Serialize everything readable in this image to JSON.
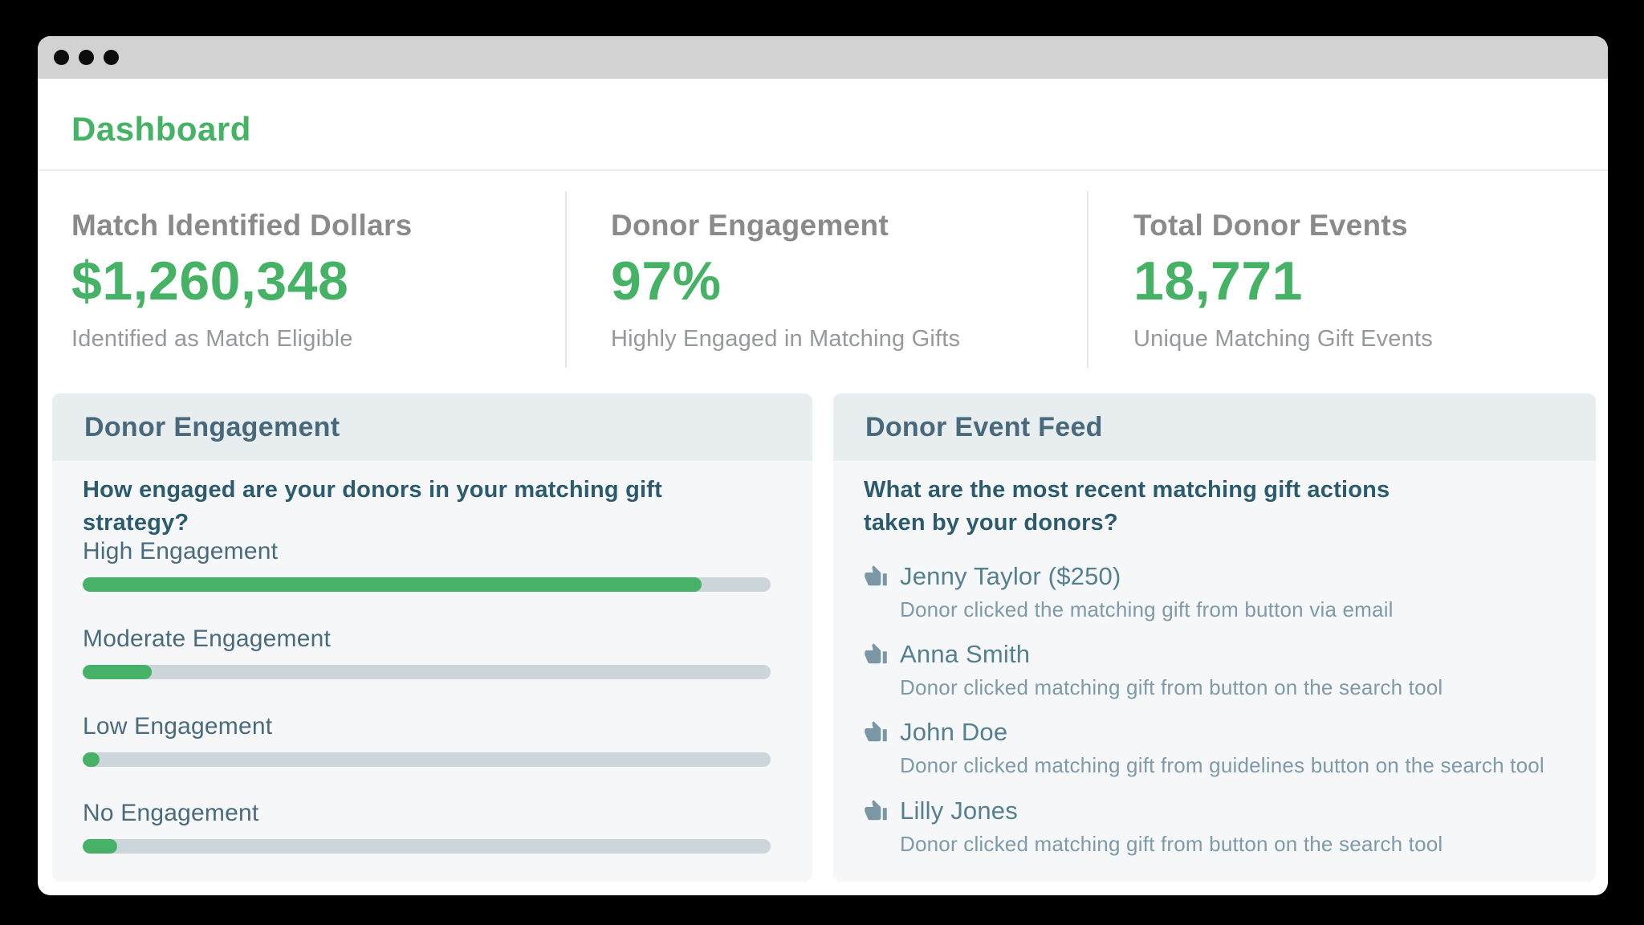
{
  "window": {
    "page_title": "Dashboard",
    "controls": {
      "dot_count": 3
    }
  },
  "colors": {
    "accent_green": "#45b266",
    "bar_fill_green": "#47b267",
    "bar_track": "#ccd6da",
    "slate_heading": "#47697b",
    "slate_question": "#2c5b6e",
    "feed_name": "#54808f",
    "feed_description": "#7f9aa8",
    "stat_label_gray": "#8a8a8a",
    "titlebar_gray": "#d2d2d2"
  },
  "stats": [
    {
      "label": "Match Identified Dollars",
      "value": "$1,260,348",
      "caption": "Identified as Match Eligible"
    },
    {
      "label": "Donor Engagement",
      "value": "97%",
      "caption": "Highly Engaged in Matching Gifts"
    },
    {
      "label": "Total Donor Events",
      "value": "18,771",
      "caption": "Unique Matching Gift Events"
    }
  ],
  "engagement_panel": {
    "title": "Donor Engagement",
    "question": "How engaged are your donors in your matching gift strategy?",
    "bars": [
      {
        "label": "High Engagement",
        "percent": 90
      },
      {
        "label": "Moderate Engagement",
        "percent": 10
      },
      {
        "label": "Low Engagement",
        "percent": 2.5
      },
      {
        "label": "No Engagement",
        "percent": 5
      }
    ]
  },
  "feed_panel": {
    "title": "Donor Event Feed",
    "question": "What are the most recent matching gift actions taken by your donors?",
    "items": [
      {
        "icon": "thumbs-up-icon",
        "name": "Jenny Taylor ($250)",
        "description": "Donor clicked the matching gift from button via email"
      },
      {
        "icon": "thumbs-up-icon",
        "name": "Anna Smith",
        "description": "Donor clicked matching gift from button on the search tool"
      },
      {
        "icon": "thumbs-up-icon",
        "name": "John Doe",
        "description": "Donor clicked matching gift from guidelines button on the search tool"
      },
      {
        "icon": "thumbs-up-icon",
        "name": "Lilly Jones",
        "description": "Donor clicked matching gift from button on the search tool"
      }
    ]
  }
}
